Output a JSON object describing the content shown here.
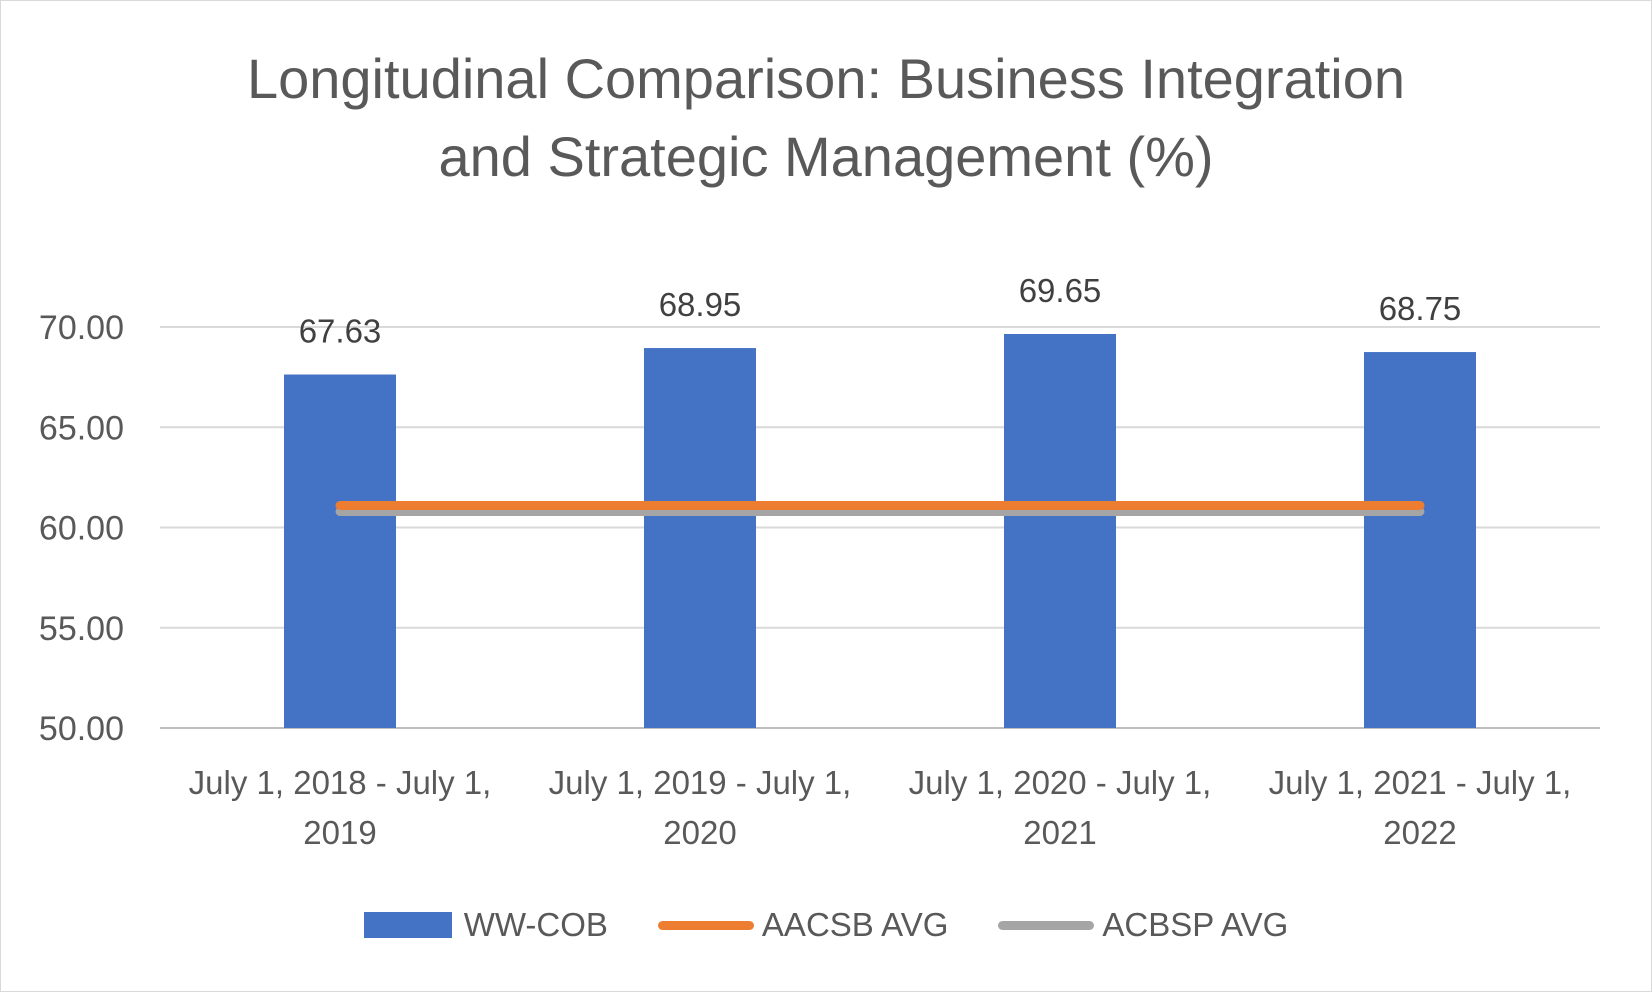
{
  "chart_data": {
    "type": "bar",
    "title": "Longitudinal Comparison: Business Integration and Strategic Management (%)",
    "title_lines": [
      "Longitudinal Comparison: Business Integration",
      "and Strategic Management (%)"
    ],
    "categories": [
      [
        "July 1, 2018 - July 1,",
        "2019"
      ],
      [
        "July 1, 2019 - July 1,",
        "2020"
      ],
      [
        "July 1, 2020 - July 1,",
        "2021"
      ],
      [
        "July 1, 2021 - July 1,",
        "2022"
      ]
    ],
    "series": [
      {
        "name": "WW-COB",
        "type": "bar",
        "color": "#4472C4",
        "values": [
          67.63,
          68.95,
          69.65,
          68.75
        ],
        "data_labels": [
          "67.63",
          "68.95",
          "69.65",
          "68.75"
        ]
      },
      {
        "name": "AACSB AVG",
        "type": "line",
        "color": "#ED7D31",
        "values": [
          61.1,
          61.1,
          61.1,
          61.1
        ]
      },
      {
        "name": "ACBSP AVG",
        "type": "line",
        "color": "#A5A5A5",
        "values": [
          60.8,
          60.8,
          60.8,
          60.8
        ]
      }
    ],
    "ylim": [
      50,
      70
    ],
    "yticks": [
      "50.00",
      "55.00",
      "60.00",
      "65.00",
      "70.00"
    ],
    "ytick_values": [
      50,
      55,
      60,
      65,
      70
    ],
    "grid": true,
    "legend": "bottom"
  }
}
